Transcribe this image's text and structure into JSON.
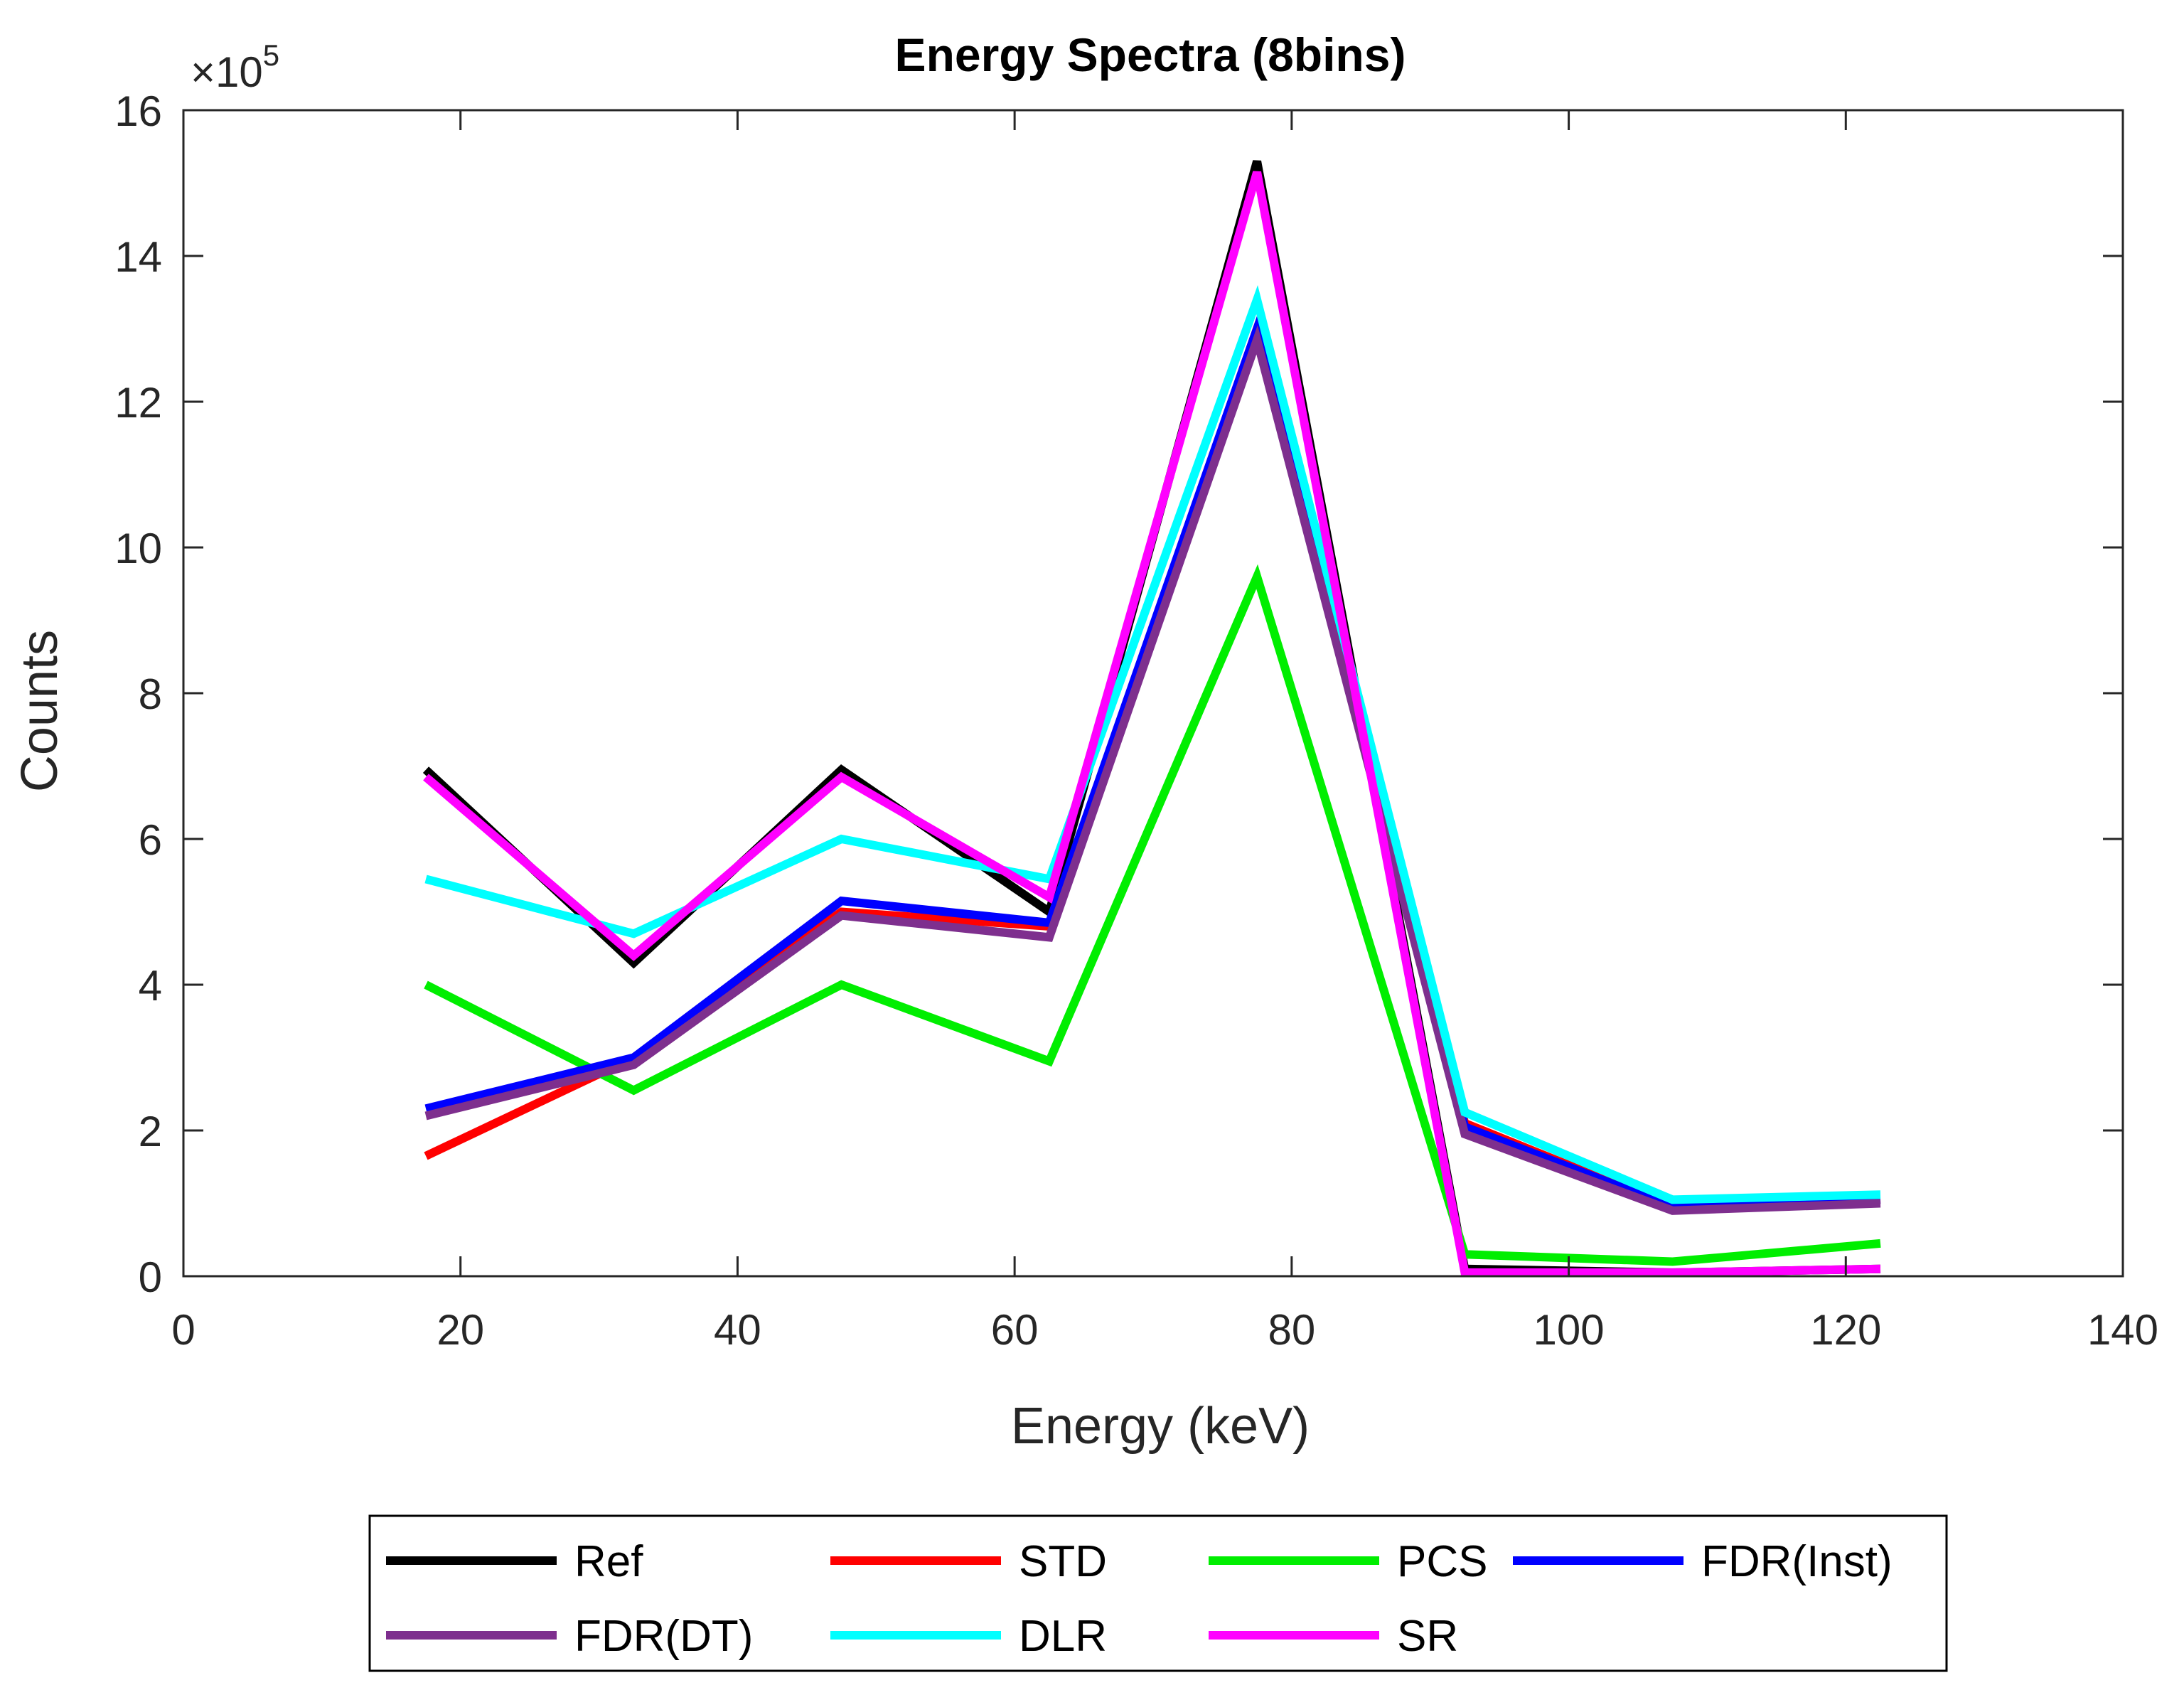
{
  "chart_data": {
    "type": "line",
    "title": "Energy Spectra (8bins)",
    "xlabel": "Energy (keV)",
    "ylabel": "Counts",
    "y_exponent_base": "×10",
    "y_exponent_power": "5",
    "xlim": [
      0,
      140
    ],
    "ylim": [
      0,
      16
    ],
    "xticks": [
      0,
      20,
      40,
      60,
      80,
      100,
      120,
      140
    ],
    "yticks": [
      0,
      2,
      4,
      6,
      8,
      10,
      12,
      14,
      16
    ],
    "grid": false,
    "legend_position": "bottom-outside",
    "x": [
      17.5,
      32.5,
      47.5,
      62.5,
      77.5,
      92.5,
      107.5,
      122.5
    ],
    "series": [
      {
        "name": "Ref",
        "color": "#000000",
        "values": [
          6.95,
          4.3,
          6.95,
          5.0,
          15.3,
          0.1,
          0.05,
          0.1
        ]
      },
      {
        "name": "STD",
        "color": "#ff0000",
        "values": [
          1.65,
          3.0,
          5.0,
          4.8,
          13.0,
          2.1,
          0.95,
          1.05
        ]
      },
      {
        "name": "PCS",
        "color": "#00ee00",
        "values": [
          4.0,
          2.55,
          4.0,
          2.95,
          9.6,
          0.3,
          0.2,
          0.45
        ]
      },
      {
        "name": "FDR(Inst)",
        "color": "#0000ff",
        "values": [
          2.3,
          3.0,
          5.15,
          4.85,
          13.0,
          2.05,
          0.95,
          1.05
        ]
      },
      {
        "name": "FDR(DT)",
        "color": "#7e2f8e",
        "values": [
          2.2,
          2.9,
          4.95,
          4.65,
          12.85,
          1.95,
          0.9,
          1.0
        ]
      },
      {
        "name": "DLR",
        "color": "#00ffff",
        "values": [
          5.45,
          4.7,
          6.0,
          5.45,
          13.4,
          2.25,
          1.05,
          1.12
        ]
      },
      {
        "name": "SR",
        "color": "#ff00ff",
        "values": [
          6.85,
          4.4,
          6.85,
          5.2,
          15.15,
          0.05,
          0.05,
          0.1
        ]
      }
    ]
  }
}
